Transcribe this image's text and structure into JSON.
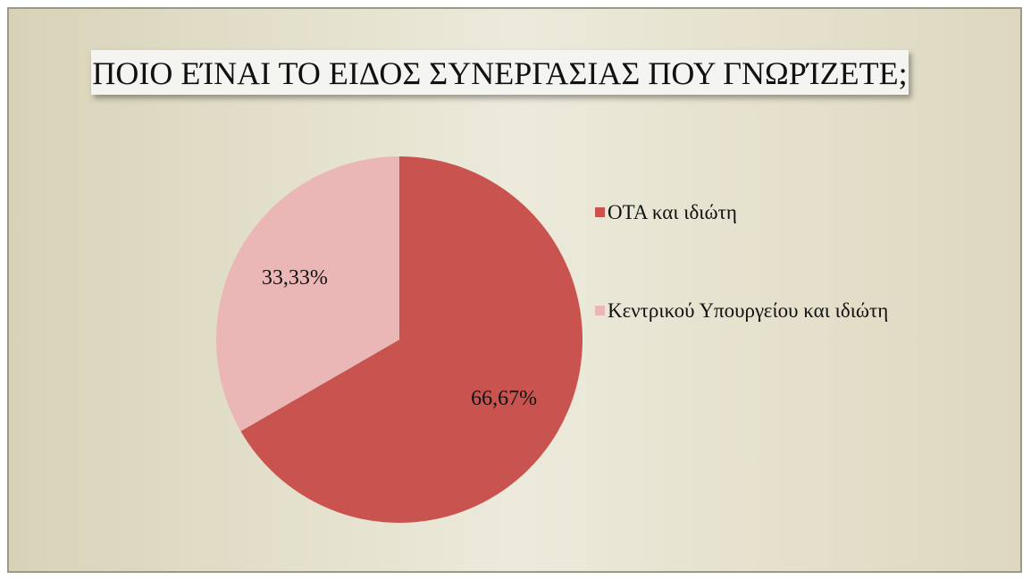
{
  "chart_data": {
    "type": "pie",
    "title": "ΠΟΙΟ ΕΊΝΑΙ ΤΟ ΕΙΔΟΣ ΣΥΝΕΡΓΑΣΙΑΣ ΠΟΥ ΓΝΩΡΊΖΕΤΕ;",
    "categories": [
      "ΟΤΑ και ιδιώτη",
      "Κεντρικού Υπουργείου και ιδιώτη"
    ],
    "values": [
      66.67,
      33.33
    ],
    "value_labels": [
      "66,67%",
      "33,33%"
    ],
    "colors": [
      "#c9544f",
      "#ebb7b6"
    ],
    "legend": "right"
  }
}
